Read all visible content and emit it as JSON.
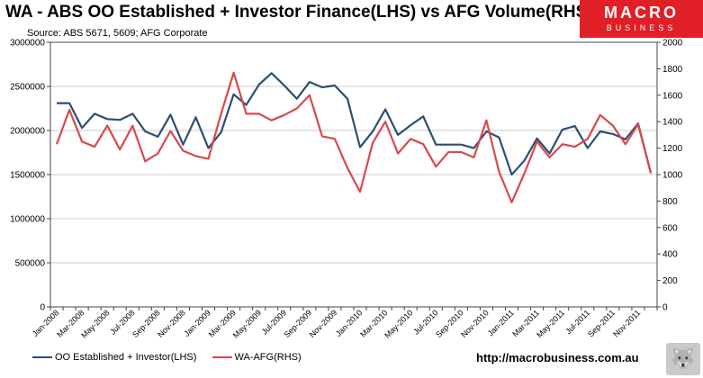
{
  "chart_data": {
    "type": "line",
    "title": "WA - ABS OO Established + Investor Finance(LHS) vs AFG Volume(RHS)",
    "source": "Source: ABS 5671, 5609; AFG Corporate",
    "left_axis": {
      "ylim": [
        0,
        3000000
      ],
      "ticks": [
        0,
        500000,
        1000000,
        1500000,
        2000000,
        2500000,
        3000000
      ],
      "tick_labels": [
        "0",
        "500000",
        "1000000",
        "1500000",
        "2000000",
        "2500000",
        "3000000"
      ]
    },
    "right_axis": {
      "ylim": [
        0,
        2000
      ],
      "ticks": [
        0,
        200,
        400,
        600,
        800,
        1000,
        1200,
        1400,
        1600,
        1800,
        2000
      ],
      "tick_labels": [
        "0",
        "200",
        "400",
        "600",
        "800",
        "1000",
        "1200",
        "1400",
        "1600",
        "1800",
        "2000"
      ]
    },
    "grid": true,
    "x": [
      "Jan-2008",
      "Feb-2008",
      "Mar-2008",
      "Apr-2008",
      "May-2008",
      "Jun-2008",
      "Jul-2008",
      "Aug-2008",
      "Sep-2008",
      "Oct-2008",
      "Nov-2008",
      "Dec-2008",
      "Jan-2009",
      "Feb-2009",
      "Mar-2009",
      "Apr-2009",
      "May-2009",
      "Jun-2009",
      "Jul-2009",
      "Aug-2009",
      "Sep-2009",
      "Oct-2009",
      "Nov-2009",
      "Dec-2009",
      "Jan-2010",
      "Feb-2010",
      "Mar-2010",
      "Apr-2010",
      "May-2010",
      "Jun-2010",
      "Jul-2010",
      "Aug-2010",
      "Sep-2010",
      "Oct-2010",
      "Nov-2010",
      "Dec-2010",
      "Jan-2011",
      "Feb-2011",
      "Mar-2011",
      "Apr-2011",
      "May-2011",
      "Jun-2011",
      "Jul-2011",
      "Aug-2011",
      "Sep-2011",
      "Oct-2011",
      "Nov-2011",
      "Dec-2011"
    ],
    "x_tick_labels": [
      "Jan-2008",
      "Mar-2008",
      "May-2008",
      "Jul-2008",
      "Sep-2008",
      "Nov-2008",
      "Jan-2009",
      "Mar-2009",
      "May-2009",
      "Jul-2009",
      "Sep-2009",
      "Nov-2009",
      "Jan-2010",
      "Mar-2010",
      "May-2010",
      "Jul-2010",
      "Sep-2010",
      "Nov-2010",
      "Jan-2011",
      "Mar-2011",
      "May-2011",
      "Jul-2011",
      "Sep-2011",
      "Nov-2011"
    ],
    "series": [
      {
        "name": "OO Established + Investor(LHS)",
        "axis": "left",
        "color": "#2c4f70",
        "values": [
          2310000,
          2310000,
          2030000,
          2190000,
          2130000,
          2120000,
          2190000,
          1990000,
          1930000,
          2180000,
          1840000,
          2150000,
          1800000,
          1980000,
          2410000,
          2290000,
          2520000,
          2650000,
          2510000,
          2360000,
          2550000,
          2490000,
          2510000,
          2360000,
          1810000,
          1990000,
          2240000,
          1950000,
          2060000,
          2160000,
          1840000,
          1840000,
          1840000,
          1800000,
          1990000,
          1920000,
          1500000,
          1660000,
          1910000,
          1740000,
          2010000,
          2050000,
          1800000,
          1990000,
          1960000,
          1900000,
          2080000,
          1520000
        ]
      },
      {
        "name": "WA-AFG(RHS)",
        "axis": "right",
        "color": "#d9484f",
        "values": [
          1230,
          1490,
          1250,
          1210,
          1370,
          1190,
          1370,
          1100,
          1160,
          1330,
          1180,
          1140,
          1120,
          1460,
          1770,
          1460,
          1460,
          1410,
          1450,
          1500,
          1600,
          1290,
          1270,
          1050,
          870,
          1240,
          1400,
          1160,
          1270,
          1230,
          1060,
          1170,
          1170,
          1130,
          1410,
          1020,
          790,
          1010,
          1250,
          1130,
          1230,
          1210,
          1270,
          1450,
          1370,
          1230,
          1380,
          1010
        ]
      }
    ]
  },
  "branding": {
    "logo_line1": "MACRO",
    "logo_line2": "BUSINESS",
    "website": "http://macrobusiness.com.au"
  }
}
